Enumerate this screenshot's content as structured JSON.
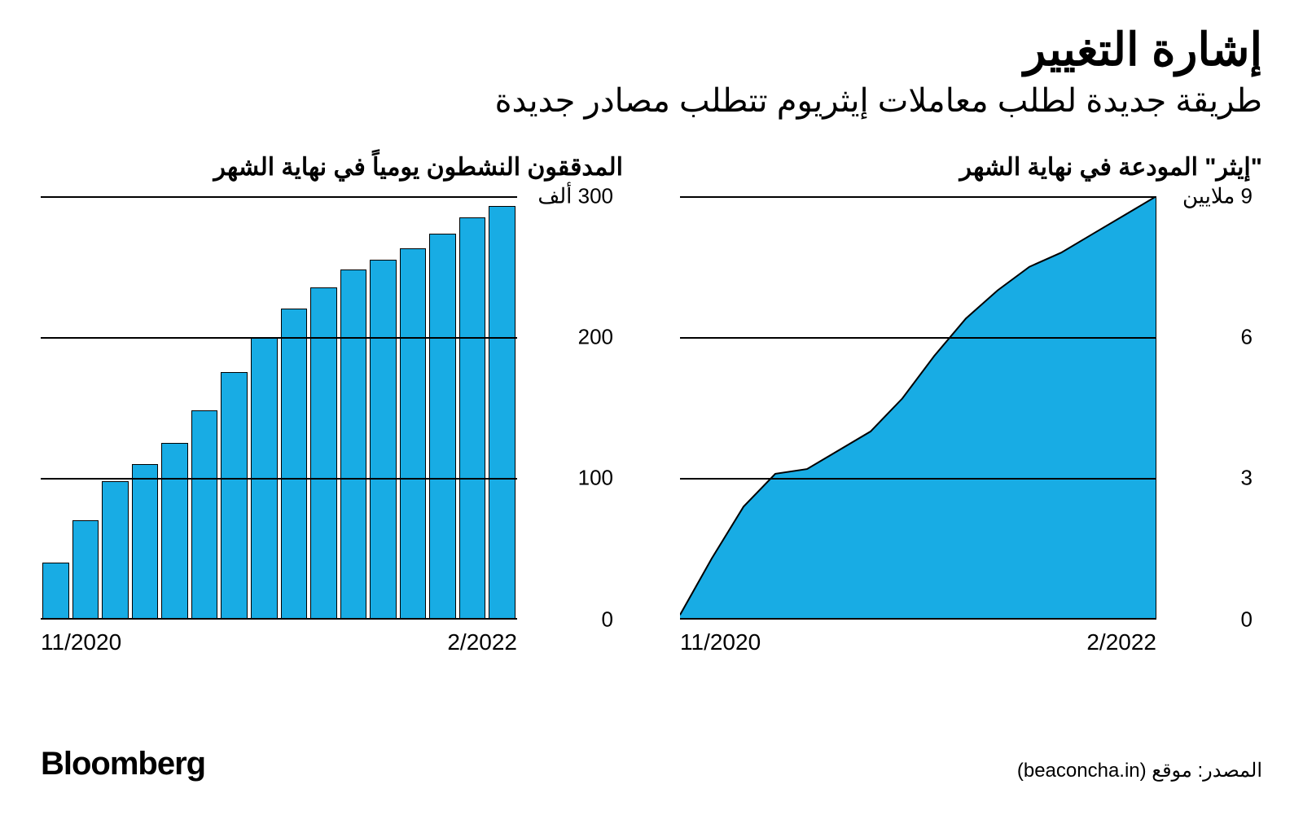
{
  "header": {
    "title": "إشارة التغيير",
    "subtitle": "طريقة جديدة لطلب معاملات إيثريوم تتطلب مصادر جديدة"
  },
  "left_chart": {
    "type": "bar",
    "title": "المدققون النشطون يومياً في نهاية الشهر",
    "bar_fill": "#18ace4",
    "bar_stroke": "#000000",
    "grid_color": "#000000",
    "ylim": [
      0,
      300
    ],
    "ytick_labels": [
      "300 ألف",
      "200",
      "100",
      "0"
    ],
    "ytick_values": [
      300,
      200,
      100,
      0
    ],
    "values": [
      40,
      70,
      98,
      110,
      125,
      148,
      175,
      200,
      220,
      235,
      248,
      255,
      263,
      273,
      285,
      293
    ],
    "x_start": "11/2020",
    "x_end": "2/2022",
    "title_fontsize": 30,
    "label_fontsize": 26
  },
  "right_chart": {
    "type": "area",
    "title": "\"إيثر\" المودعة في نهاية الشهر",
    "fill": "#18ace4",
    "stroke": "#000000",
    "stroke_width": 2,
    "grid_color": "#000000",
    "ylim": [
      0,
      9
    ],
    "ytick_labels": [
      "9 ملايين",
      "6",
      "3",
      "0"
    ],
    "ytick_values": [
      9,
      6,
      3,
      0
    ],
    "values": [
      0.1,
      1.3,
      2.4,
      3.1,
      3.2,
      3.6,
      4.0,
      4.7,
      5.6,
      6.4,
      7.0,
      7.5,
      7.8,
      8.2,
      8.6,
      9.0
    ],
    "x_start": "11/2020",
    "x_end": "2/2022",
    "title_fontsize": 30,
    "label_fontsize": 26
  },
  "footer": {
    "logo": "Bloomberg",
    "source": "المصدر: موقع (beaconcha.in)"
  },
  "colors": {
    "background": "#ffffff",
    "text": "#000000",
    "accent": "#18ace4"
  }
}
